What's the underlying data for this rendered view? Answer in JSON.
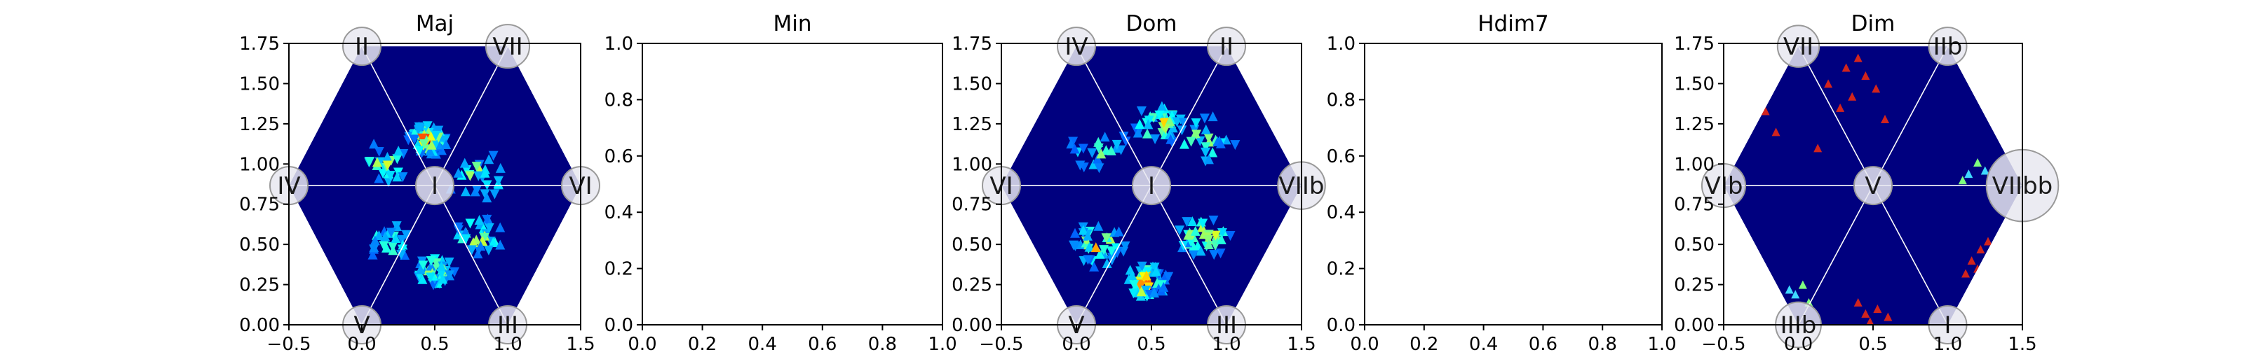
{
  "chart_data": [
    {
      "type": "heatmap",
      "title": "Maj",
      "xlabel": "",
      "ylabel": "",
      "xlim": [
        -0.5,
        1.5
      ],
      "ylim": [
        0.0,
        1.75
      ],
      "xticks": [
        "−0.5",
        "0.0",
        "0.5",
        "1.0",
        "1.5"
      ],
      "yticks": [
        "0.00",
        "0.25",
        "0.50",
        "0.75",
        "1.00",
        "1.25",
        "1.50",
        "1.75"
      ],
      "grid": false,
      "hexagon": true,
      "nodes": [
        {
          "label": "I",
          "x": 0.5,
          "y": 0.866,
          "size": 1.0
        },
        {
          "label": "II",
          "x": 0.0,
          "y": 1.732,
          "size": 1.0
        },
        {
          "label": "VII",
          "x": 1.0,
          "y": 1.732,
          "size": 1.15
        },
        {
          "label": "IV",
          "x": -0.5,
          "y": 0.866,
          "size": 1.0
        },
        {
          "label": "VI",
          "x": 1.5,
          "y": 0.866,
          "size": 1.0
        },
        {
          "label": "V",
          "x": 0.0,
          "y": 0.0,
          "size": 1.0
        },
        {
          "label": "III",
          "x": 1.0,
          "y": 0.0,
          "size": 1.0
        }
      ],
      "hotspots": [
        {
          "x": 0.45,
          "y": 1.15,
          "spread": 0.07,
          "intensity": 0.95
        },
        {
          "x": 0.15,
          "y": 1.0,
          "spread": 0.12,
          "intensity": 0.6
        },
        {
          "x": 0.8,
          "y": 0.93,
          "spread": 0.14,
          "intensity": 0.6
        },
        {
          "x": 0.2,
          "y": 0.52,
          "spread": 0.1,
          "intensity": 0.65
        },
        {
          "x": 0.8,
          "y": 0.55,
          "spread": 0.1,
          "intensity": 0.7
        },
        {
          "x": 0.5,
          "y": 0.33,
          "spread": 0.08,
          "intensity": 0.75
        }
      ]
    },
    {
      "type": "heatmap",
      "title": "Min",
      "xlabel": "",
      "ylabel": "",
      "xlim": [
        0.0,
        1.0
      ],
      "ylim": [
        0.0,
        1.0
      ],
      "xticks": [
        "0.0",
        "0.2",
        "0.4",
        "0.6",
        "0.8",
        "1.0"
      ],
      "yticks": [
        "0.0",
        "0.2",
        "0.4",
        "0.6",
        "0.8",
        "1.0"
      ],
      "grid": false,
      "hexagon": false,
      "nodes": [],
      "hotspots": []
    },
    {
      "type": "heatmap",
      "title": "Dom",
      "xlabel": "",
      "ylabel": "",
      "xlim": [
        -0.5,
        1.5
      ],
      "ylim": [
        0.0,
        1.75
      ],
      "xticks": [
        "−0.5",
        "0.0",
        "0.5",
        "1.0",
        "1.5"
      ],
      "yticks": [
        "0.00",
        "0.25",
        "0.50",
        "0.75",
        "1.00",
        "1.25",
        "1.50",
        "1.75"
      ],
      "grid": false,
      "hexagon": true,
      "nodes": [
        {
          "label": "I",
          "x": 0.5,
          "y": 0.866,
          "size": 1.0
        },
        {
          "label": "IV",
          "x": 0.0,
          "y": 1.732,
          "size": 1.0
        },
        {
          "label": "II",
          "x": 1.0,
          "y": 1.732,
          "size": 1.0
        },
        {
          "label": "VI",
          "x": -0.5,
          "y": 0.866,
          "size": 1.0
        },
        {
          "label": "VIIb",
          "x": 1.5,
          "y": 0.866,
          "size": 1.25
        },
        {
          "label": "V",
          "x": 0.0,
          "y": 0.0,
          "size": 1.0
        },
        {
          "label": "III",
          "x": 1.0,
          "y": 0.0,
          "size": 1.0
        }
      ],
      "hotspots": [
        {
          "x": 0.55,
          "y": 1.25,
          "spread": 0.1,
          "intensity": 0.75
        },
        {
          "x": 0.15,
          "y": 1.1,
          "spread": 0.14,
          "intensity": 0.55
        },
        {
          "x": 0.85,
          "y": 1.15,
          "spread": 0.14,
          "intensity": 0.6
        },
        {
          "x": 0.15,
          "y": 0.5,
          "spread": 0.11,
          "intensity": 0.75
        },
        {
          "x": 0.85,
          "y": 0.55,
          "spread": 0.11,
          "intensity": 0.75
        },
        {
          "x": 0.45,
          "y": 0.27,
          "spread": 0.09,
          "intensity": 0.85
        }
      ]
    },
    {
      "type": "heatmap",
      "title": "Hdim7",
      "xlabel": "",
      "ylabel": "",
      "xlim": [
        0.0,
        1.0
      ],
      "ylim": [
        0.0,
        1.0
      ],
      "xticks": [
        "0.0",
        "0.2",
        "0.4",
        "0.6",
        "0.8",
        "1.0"
      ],
      "yticks": [
        "0.0",
        "0.2",
        "0.4",
        "0.6",
        "0.8",
        "1.0"
      ],
      "grid": false,
      "hexagon": false,
      "nodes": [],
      "hotspots": []
    },
    {
      "type": "heatmap",
      "title": "Dim",
      "xlabel": "",
      "ylabel": "",
      "xlim": [
        -0.5,
        1.5
      ],
      "ylim": [
        0.0,
        1.75
      ],
      "xticks": [
        "−0.5",
        "0.0",
        "0.5",
        "1.0",
        "1.5"
      ],
      "yticks": [
        "0.00",
        "0.25",
        "0.50",
        "0.75",
        "1.00",
        "1.25",
        "1.50",
        "1.75"
      ],
      "grid": false,
      "hexagon": true,
      "nodes": [
        {
          "label": "V",
          "x": 0.5,
          "y": 0.866,
          "size": 1.0
        },
        {
          "label": "VII",
          "x": 0.0,
          "y": 1.732,
          "size": 1.1
        },
        {
          "label": "IIb",
          "x": 1.0,
          "y": 1.732,
          "size": 1.0
        },
        {
          "label": "VIb",
          "x": -0.5,
          "y": 0.866,
          "size": 1.15
        },
        {
          "label": "VIIbb",
          "x": 1.5,
          "y": 0.866,
          "size": 1.9
        },
        {
          "label": "IIIb",
          "x": 0.0,
          "y": 0.0,
          "size": 1.2
        },
        {
          "label": "I",
          "x": 1.0,
          "y": 0.0,
          "size": 1.0
        }
      ],
      "sparse_marks": [
        {
          "x": -0.3,
          "y": 1.4,
          "color": "#d2241d"
        },
        {
          "x": -0.22,
          "y": 1.33,
          "color": "#d2241d"
        },
        {
          "x": -0.15,
          "y": 1.2,
          "color": "#d2241d"
        },
        {
          "x": 0.2,
          "y": 1.5,
          "color": "#d2241d"
        },
        {
          "x": 0.28,
          "y": 1.35,
          "color": "#d2241d"
        },
        {
          "x": 0.32,
          "y": 1.6,
          "color": "#d2241d"
        },
        {
          "x": 0.4,
          "y": 1.66,
          "color": "#d2241d"
        },
        {
          "x": 0.45,
          "y": 1.55,
          "color": "#d2241d"
        },
        {
          "x": 0.52,
          "y": 1.47,
          "color": "#d2241d"
        },
        {
          "x": 0.58,
          "y": 1.28,
          "color": "#d2241d"
        },
        {
          "x": 0.36,
          "y": 1.42,
          "color": "#d2241d"
        },
        {
          "x": 0.13,
          "y": 1.1,
          "color": "#d2241d"
        },
        {
          "x": 1.2,
          "y": 1.01,
          "color": "#7fff7f"
        },
        {
          "x": 1.25,
          "y": 0.96,
          "color": "#3fd9ff"
        },
        {
          "x": 1.14,
          "y": 0.94,
          "color": "#3fd9ff"
        },
        {
          "x": 1.1,
          "y": 0.9,
          "color": "#7fff7f"
        },
        {
          "x": 1.22,
          "y": 0.47,
          "color": "#d2241d"
        },
        {
          "x": 1.16,
          "y": 0.4,
          "color": "#d2241d"
        },
        {
          "x": 1.27,
          "y": 0.52,
          "color": "#d2241d"
        },
        {
          "x": 1.2,
          "y": 0.35,
          "color": "#d2241d"
        },
        {
          "x": 1.12,
          "y": 0.32,
          "color": "#d2241d"
        },
        {
          "x": 0.03,
          "y": 0.25,
          "color": "#7fff7f"
        },
        {
          "x": -0.02,
          "y": 0.19,
          "color": "#3fd9ff"
        },
        {
          "x": 0.07,
          "y": 0.14,
          "color": "#7fff7f"
        },
        {
          "x": -0.06,
          "y": 0.22,
          "color": "#3fd9ff"
        },
        {
          "x": 0.4,
          "y": 0.14,
          "color": "#d2241d"
        },
        {
          "x": 0.45,
          "y": 0.07,
          "color": "#d2241d"
        },
        {
          "x": 0.53,
          "y": 0.1,
          "color": "#d2241d"
        },
        {
          "x": 0.6,
          "y": 0.05,
          "color": "#d2241d"
        },
        {
          "x": 0.48,
          "y": 0.02,
          "color": "#d2241d"
        }
      ]
    }
  ],
  "colors": {
    "background": "#00007f",
    "hex_line": "#ffffff",
    "node_fill": "#e8e8f0",
    "node_stroke": "#999999"
  }
}
